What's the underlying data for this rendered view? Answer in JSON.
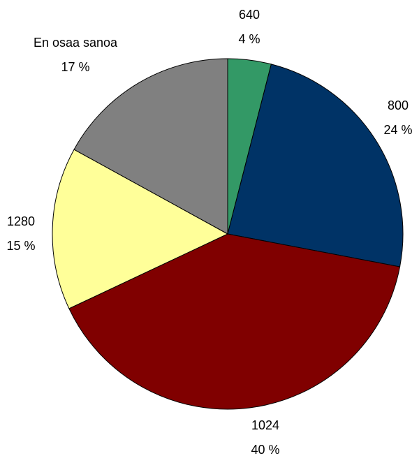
{
  "chart_data": {
    "type": "pie",
    "categories": [
      "640",
      "800",
      "1024",
      "1280",
      "En osaa sanoa"
    ],
    "values": [
      4,
      24,
      40,
      15,
      17
    ],
    "value_labels": [
      "4 %",
      "24 %",
      "40 %",
      "15 %",
      "17 %"
    ],
    "colors": [
      "#339966",
      "#003366",
      "#800000",
      "#ffff99",
      "#808080"
    ]
  }
}
